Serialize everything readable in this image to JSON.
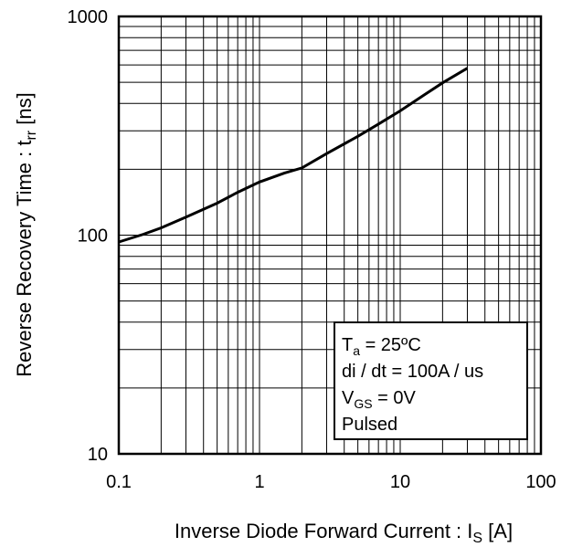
{
  "chart_data": {
    "type": "line",
    "x_scale": "log",
    "y_scale": "log",
    "xlim": [
      0.1,
      100
    ],
    "ylim": [
      10,
      1000
    ],
    "grid": true,
    "x_ticks": [
      "0.1",
      "1",
      "10",
      "100"
    ],
    "y_ticks": [
      "10",
      "100",
      "1000"
    ],
    "xlabel": {
      "main": "Inverse Diode  Forward Current : I",
      "sub": "S",
      "unit": " [A]"
    },
    "ylabel": {
      "main": "Reverse Recovery Time : t",
      "sub": "rr",
      "unit": " [ns]"
    },
    "series": [
      {
        "x": [
          0.1,
          0.15,
          0.2,
          0.3,
          0.5,
          0.7,
          1.0,
          1.5,
          2.0,
          3.0,
          5.0,
          7.0,
          10,
          15,
          20,
          30
        ],
        "y": [
          93,
          101,
          108,
          121,
          140,
          157,
          175,
          192,
          203,
          236,
          283,
          322,
          370,
          440,
          497,
          580
        ]
      }
    ],
    "annotation": [
      {
        "main": "T",
        "sub": "a",
        "rest": " = 25ºC"
      },
      {
        "main": "di / dt = 100A / us",
        "sub": "",
        "rest": ""
      },
      {
        "main": "V",
        "sub": "GS",
        "rest": " = 0V"
      },
      {
        "main": "Pulsed",
        "sub": "",
        "rest": ""
      }
    ],
    "legend_position": "bottom-right"
  }
}
